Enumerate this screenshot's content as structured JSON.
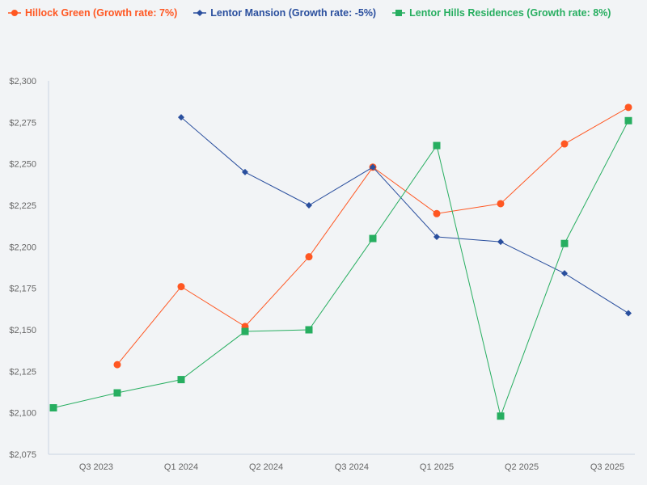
{
  "chart_data": {
    "type": "line",
    "x_tick_labels": [
      "Q3 2023",
      "Q1 2024",
      "Q2 2024",
      "Q3 2024",
      "Q1 2025",
      "Q2 2025",
      "Q3 2025"
    ],
    "x_tick_positions": [
      0.67,
      2,
      3.33,
      4.67,
      6,
      7.33,
      8.67
    ],
    "x": [
      0,
      1,
      2,
      3,
      4,
      5,
      6,
      7,
      8,
      9
    ],
    "ylim": [
      2075,
      2300
    ],
    "y_ticks": [
      2075,
      2100,
      2125,
      2150,
      2175,
      2200,
      2225,
      2250,
      2275,
      2300
    ],
    "y_tick_labels": [
      "$2,075",
      "$2,100",
      "$2,125",
      "$2,150",
      "$2,175",
      "$2,200",
      "$2,225",
      "$2,250",
      "$2,275",
      "$2,300"
    ],
    "grid": false,
    "legend_placement": "top-left",
    "series": [
      {
        "name": "Hillock Green (Growth rate: 7%)",
        "color": "#ff5722",
        "marker": "circle",
        "values": [
          null,
          2129,
          2176,
          2152,
          2194,
          2248,
          2220,
          2226,
          2262,
          2284
        ]
      },
      {
        "name": "Lentor Mansion (Growth rate: -5%)",
        "color": "#2a4f9e",
        "marker": "diamond",
        "values": [
          null,
          null,
          2278,
          2245,
          2225,
          2248,
          2206,
          2203,
          2184,
          2160
        ]
      },
      {
        "name": "Lentor Hills Residences (Growth rate: 8%)",
        "color": "#27ae60",
        "marker": "square",
        "values": [
          2103,
          2112,
          2120,
          2149,
          2150,
          2205,
          2261,
          2098,
          2202,
          2276
        ]
      }
    ]
  }
}
